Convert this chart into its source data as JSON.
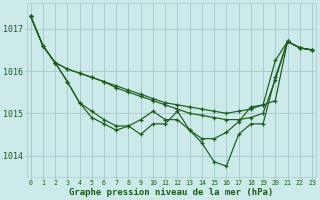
{
  "background_color": "#cceaea",
  "grid_color": "#aacccc",
  "line_color": "#1a5c1a",
  "marker_color": "#1a5c1a",
  "xlabel": "Graphe pression niveau de la mer (hPa)",
  "tick_label_color": "#1a5c1a",
  "ylim": [
    1013.5,
    1017.6
  ],
  "xlim": [
    -0.3,
    23.3
  ],
  "yticks": [
    1014,
    1015,
    1016,
    1017
  ],
  "xticks": [
    0,
    1,
    2,
    3,
    4,
    5,
    6,
    7,
    8,
    9,
    10,
    11,
    12,
    13,
    14,
    15,
    16,
    17,
    18,
    19,
    20,
    21,
    22,
    23
  ],
  "series": [
    [
      1017.3,
      1016.6,
      1016.2,
      1016.05,
      1015.95,
      1015.85,
      1015.75,
      1015.65,
      1015.55,
      1015.45,
      1015.35,
      1015.25,
      1015.2,
      1015.15,
      1015.1,
      1015.05,
      1015.0,
      1015.05,
      1015.1,
      1015.2,
      1015.3,
      1016.7,
      1016.55,
      1016.5
    ],
    [
      1017.3,
      1016.6,
      1016.2,
      1016.05,
      1015.95,
      1015.85,
      1015.75,
      1015.6,
      1015.5,
      1015.4,
      1015.3,
      1015.2,
      1015.1,
      1015.0,
      1014.95,
      1014.9,
      1014.85,
      1014.85,
      1014.9,
      1015.0,
      1015.8,
      1016.7,
      1016.55,
      1016.5
    ],
    [
      1017.3,
      1016.6,
      1016.2,
      1015.75,
      1015.25,
      1015.05,
      1014.85,
      1014.7,
      1014.7,
      1014.85,
      1015.05,
      1014.85,
      1014.85,
      1014.6,
      1014.4,
      1014.4,
      1014.55,
      1014.8,
      1015.15,
      1015.2,
      1016.25,
      1016.7,
      1016.55,
      1016.5
    ],
    [
      1017.3,
      1016.6,
      1016.2,
      1015.75,
      1015.25,
      1014.9,
      1014.75,
      1014.6,
      1014.7,
      1014.5,
      1014.75,
      1014.75,
      1015.05,
      1014.6,
      1014.3,
      1013.85,
      1013.75,
      1014.5,
      1014.75,
      1014.75,
      1015.85,
      1016.7,
      1016.55,
      1016.5
    ]
  ]
}
